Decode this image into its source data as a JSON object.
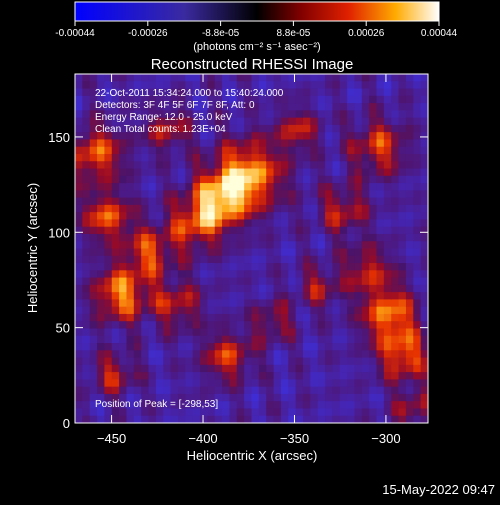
{
  "colorbar": {
    "tick_labels": [
      "-0.00044",
      "-0.00026",
      "-8.8e-05",
      "8.8e-05",
      "0.00026",
      "0.00044"
    ],
    "units_label": "(photons cm⁻² s⁻¹ asec⁻²)",
    "range": [
      -0.00044,
      0.00044
    ]
  },
  "chart_data": {
    "type": "heatmap",
    "title": "Reconstructed RHESSI Image",
    "xlabel": "Heliocentric X (arcsec)",
    "ylabel": "Heliocentric Y (arcsec)",
    "xlim": [
      -470,
      -277
    ],
    "ylim": [
      0,
      183
    ],
    "x_ticks": [
      -450,
      -400,
      -350,
      -300
    ],
    "y_ticks": [
      0,
      50,
      100,
      150
    ],
    "annotations": [
      "22-Oct-2011 15:34:24.000 to 15:40:24.000",
      "Detectors: 3F 4F 5F 6F 7F 8F, Att: 0",
      "Energy Range: 12.0 - 25.0 keV",
      "Clean     Total counts: 1.23E+04"
    ],
    "peak_label": "Position of Peak = [-298,53]",
    "peak_position": [
      -298,
      53
    ]
  },
  "footer": {
    "date": "15-May-2022 09:47"
  }
}
